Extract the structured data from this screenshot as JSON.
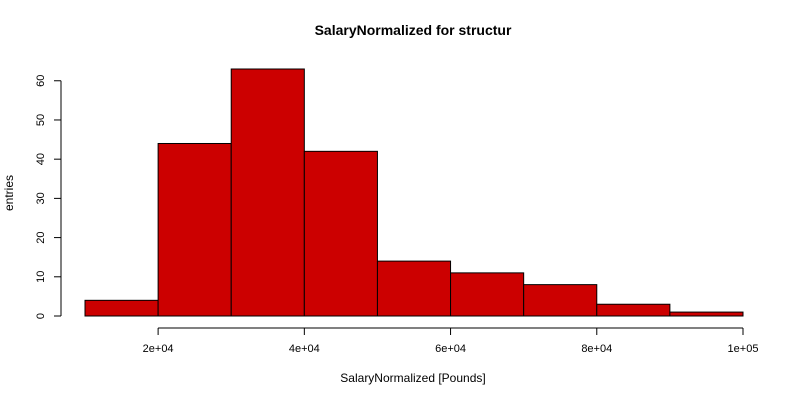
{
  "chart_data": {
    "type": "bar",
    "title": "SalaryNormalized for structur",
    "xlabel": "SalaryNormalized [Pounds]",
    "ylabel": "entries",
    "bins": [
      {
        "from": 10000,
        "to": 20000,
        "count": 4
      },
      {
        "from": 20000,
        "to": 30000,
        "count": 44
      },
      {
        "from": 30000,
        "to": 40000,
        "count": 63
      },
      {
        "from": 40000,
        "to": 50000,
        "count": 42
      },
      {
        "from": 50000,
        "to": 60000,
        "count": 14
      },
      {
        "from": 60000,
        "to": 70000,
        "count": 11
      },
      {
        "from": 70000,
        "to": 80000,
        "count": 8
      },
      {
        "from": 80000,
        "to": 90000,
        "count": 3
      },
      {
        "from": 90000,
        "to": 100000,
        "count": 1
      }
    ],
    "xlim": [
      10000,
      100000
    ],
    "ylim": [
      0,
      63
    ],
    "x_ticks": [
      {
        "value": 20000,
        "label": "2e+04"
      },
      {
        "value": 40000,
        "label": "4e+04"
      },
      {
        "value": 60000,
        "label": "6e+04"
      },
      {
        "value": 80000,
        "label": "8e+04"
      },
      {
        "value": 100000,
        "label": "1e+05"
      }
    ],
    "y_ticks": [
      {
        "value": 0,
        "label": "0"
      },
      {
        "value": 10,
        "label": "10"
      },
      {
        "value": 20,
        "label": "20"
      },
      {
        "value": 30,
        "label": "30"
      },
      {
        "value": 40,
        "label": "40"
      },
      {
        "value": 50,
        "label": "50"
      },
      {
        "value": 60,
        "label": "60"
      }
    ],
    "bar_color": "#cc0000",
    "grid": false,
    "legend": "none"
  }
}
